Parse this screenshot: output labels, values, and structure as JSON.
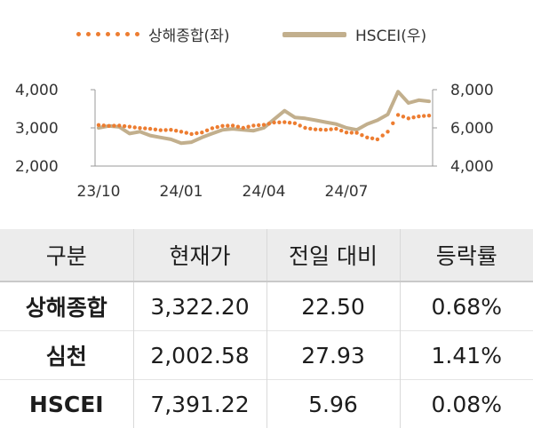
{
  "legend": [
    {
      "label": "상해종합(좌)",
      "color": "#ED7D31",
      "style": "dots"
    },
    {
      "label": "HSCEI(우)",
      "color": "#C2AF8D",
      "style": "line"
    }
  ],
  "chart_data": {
    "type": "line",
    "x_ticks": [
      "23/10",
      "24/01",
      "24/04",
      "24/07"
    ],
    "y_left": {
      "ticks": [
        "2,000",
        "3,000",
        "4,000"
      ],
      "range": [
        2000,
        4000
      ]
    },
    "y_right": {
      "ticks": [
        "4,000",
        "6,000",
        "8,000"
      ],
      "range": [
        4000,
        8000
      ]
    },
    "grid": false,
    "legend_position": "top",
    "series": [
      {
        "name": "상해종합(좌)",
        "axis": "left",
        "color": "#ED7D31",
        "style": "dots",
        "x": [
          "23/10",
          "23/10",
          "23/11",
          "23/11",
          "23/11",
          "23/12",
          "23/12",
          "24/01",
          "24/01",
          "24/01",
          "24/02",
          "24/02",
          "24/03",
          "24/03",
          "24/03",
          "24/04",
          "24/04",
          "24/04",
          "24/05",
          "24/05",
          "24/06",
          "24/06",
          "24/07",
          "24/07",
          "24/08",
          "24/08",
          "24/09",
          "24/09",
          "24/09",
          "24/10",
          "24/10",
          "24/10",
          "24/11"
        ],
        "y": [
          3075,
          3050,
          3060,
          3030,
          2995,
          2975,
          2940,
          2950,
          2900,
          2840,
          2880,
          2990,
          3050,
          3060,
          3000,
          3060,
          3080,
          3140,
          3150,
          3120,
          3000,
          2960,
          2950,
          2975,
          2880,
          2870,
          2750,
          2700,
          2900,
          3340,
          3250,
          3300,
          3322
        ]
      },
      {
        "name": "HSCEI(우)",
        "axis": "right",
        "color": "#C2AF8D",
        "style": "line",
        "x": [
          "23/10",
          "23/10",
          "23/11",
          "23/11",
          "23/11",
          "23/12",
          "23/12",
          "24/01",
          "24/01",
          "24/01",
          "24/02",
          "24/02",
          "24/03",
          "24/03",
          "24/03",
          "24/04",
          "24/04",
          "24/04",
          "24/05",
          "24/05",
          "24/06",
          "24/06",
          "24/07",
          "24/07",
          "24/08",
          "24/08",
          "24/09",
          "24/09",
          "24/09",
          "24/10",
          "24/10",
          "24/10",
          "24/11"
        ],
        "y": [
          6000,
          6100,
          6050,
          5700,
          5800,
          5600,
          5500,
          5400,
          5200,
          5250,
          5500,
          5700,
          5900,
          5950,
          5900,
          5850,
          6000,
          6450,
          6900,
          6550,
          6500,
          6400,
          6300,
          6200,
          6000,
          5900,
          6200,
          6400,
          6700,
          7900,
          7300,
          7450,
          7391
        ]
      }
    ]
  },
  "table": {
    "headers": [
      "구분",
      "현재가",
      "전일 대비",
      "등락률"
    ],
    "rows": [
      [
        "상해종합",
        "3,322.20",
        "22.50",
        "0.68%"
      ],
      [
        "심천",
        "2,002.58",
        "27.93",
        "1.41%"
      ],
      [
        "HSCEI",
        "7,391.22",
        "5.96",
        "0.08%"
      ]
    ]
  }
}
